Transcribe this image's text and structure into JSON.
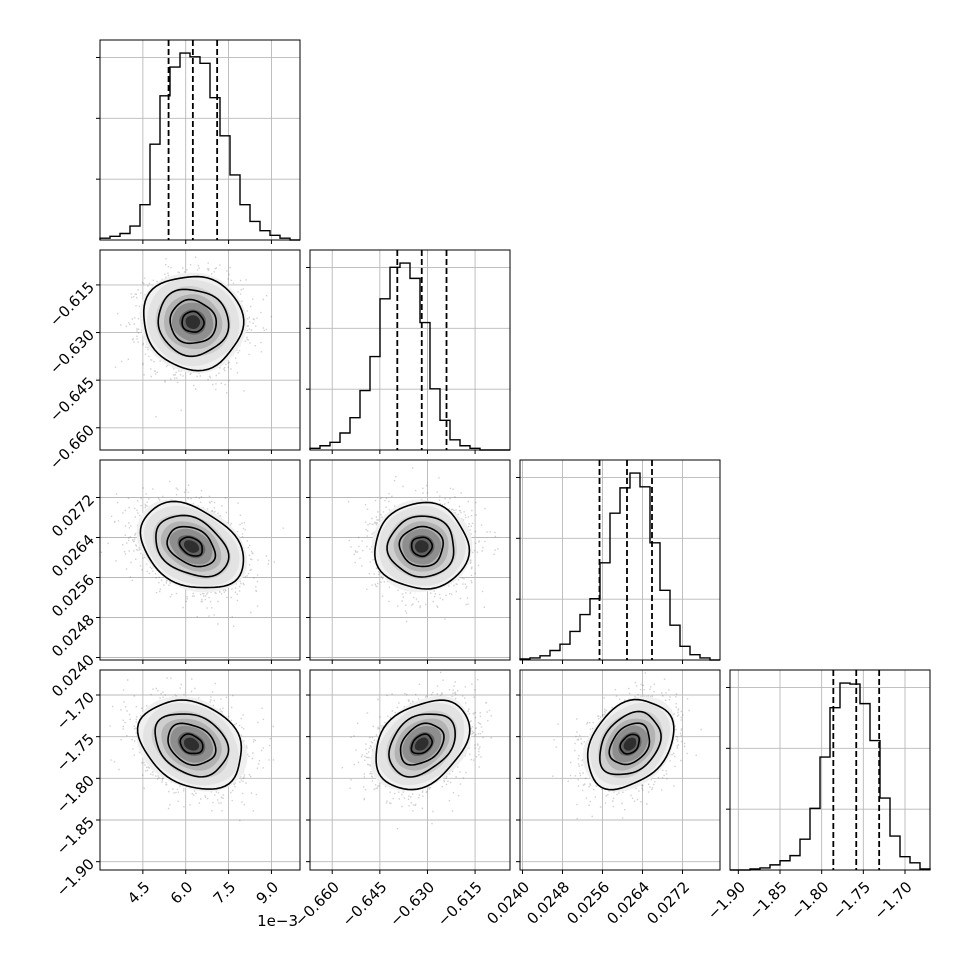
{
  "chart_data": {
    "type": "corner",
    "title": "",
    "parameters": [
      {
        "range": [
          3.0,
          10.0
        ],
        "ticks": [
          4.5,
          6.0,
          7.5,
          9.0
        ],
        "tick_labels": [
          "4.5",
          "6.0",
          "7.5",
          "9.0"
        ],
        "offset_label": "1e−3",
        "quantiles": [
          5.4,
          6.25,
          7.1
        ],
        "hist_edges": [
          3.0,
          3.35,
          3.7,
          4.05,
          4.4,
          4.75,
          5.1,
          5.45,
          5.8,
          6.15,
          6.5,
          6.85,
          7.2,
          7.55,
          7.9,
          8.25,
          8.6,
          8.95,
          9.3,
          9.65,
          10.0
        ],
        "hist_counts": [
          2,
          4,
          7,
          15,
          38,
          103,
          155,
          186,
          201,
          197,
          190,
          153,
          112,
          70,
          38,
          20,
          10,
          5,
          2,
          0
        ]
      },
      {
        "range": [
          -0.667,
          -0.604
        ],
        "ticks": [
          -0.66,
          -0.645,
          -0.63,
          -0.615
        ],
        "tick_labels": [
          "−0.660",
          "−0.645",
          "−0.630",
          "−0.615"
        ],
        "quantiles": [
          -0.6395,
          -0.6318,
          -0.624
        ],
        "hist_edges": [
          -0.667,
          -0.66385,
          -0.6607,
          -0.65755,
          -0.6544,
          -0.65125,
          -0.6481,
          -0.64495,
          -0.6418,
          -0.63865,
          -0.6355,
          -0.63235,
          -0.6292,
          -0.62605,
          -0.6229,
          -0.61975,
          -0.6166,
          -0.61345,
          -0.6103,
          -0.60715,
          -0.604
        ],
        "hist_counts": [
          2,
          5,
          9,
          20,
          38,
          70,
          110,
          178,
          215,
          220,
          202,
          150,
          72,
          35,
          12,
          5,
          2,
          0,
          0,
          0
        ]
      },
      {
        "range": [
          0.02395,
          0.02795
        ],
        "ticks": [
          0.024,
          0.0248,
          0.0256,
          0.0264,
          0.0272
        ],
        "tick_labels": [
          "0.0240",
          "0.0248",
          "0.0256",
          "0.0264",
          "0.0272"
        ],
        "quantiles": [
          0.02554,
          0.02609,
          0.02659
        ],
        "hist_edges": [
          0.02395,
          0.02415,
          0.02435,
          0.02455,
          0.02475,
          0.02495,
          0.02515,
          0.02535,
          0.02555,
          0.02575,
          0.02595,
          0.02615,
          0.02635,
          0.02655,
          0.02675,
          0.02695,
          0.02715,
          0.02735,
          0.02755,
          0.02775,
          0.02795
        ],
        "hist_counts": [
          1,
          2,
          4,
          9,
          15,
          27,
          43,
          58,
          92,
          139,
          163,
          177,
          164,
          111,
          66,
          33,
          13,
          5,
          2,
          0
        ]
      },
      {
        "range": [
          -1.91,
          -1.67
        ],
        "ticks": [
          -1.9,
          -1.85,
          -1.8,
          -1.75,
          -1.7
        ],
        "tick_labels": [
          "−1.90",
          "−1.85",
          "−1.80",
          "−1.75",
          "−1.70"
        ],
        "quantiles": [
          -1.786,
          -1.7585,
          -1.731
        ],
        "hist_edges": [
          -1.91,
          -1.898,
          -1.886,
          -1.874,
          -1.862,
          -1.85,
          -1.838,
          -1.826,
          -1.814,
          -1.802,
          -1.79,
          -1.778,
          -1.766,
          -1.754,
          -1.742,
          -1.73,
          -1.718,
          -1.706,
          -1.694,
          -1.682,
          -1.67
        ],
        "hist_counts": [
          0,
          0,
          1,
          2,
          5,
          9,
          14,
          30,
          60,
          110,
          158,
          182,
          181,
          162,
          126,
          70,
          33,
          13,
          7,
          1
        ]
      }
    ],
    "pairs": [
      {
        "row": 1,
        "col": 0,
        "center": [
          6.25,
          -0.6267
        ],
        "sigma": [
          0.85,
          0.0072
        ],
        "rho": -0.05
      },
      {
        "row": 2,
        "col": 0,
        "center": [
          6.2,
          0.02622
        ],
        "sigma": [
          0.88,
          0.00042
        ],
        "rho": -0.32
      },
      {
        "row": 2,
        "col": 1,
        "center": [
          -0.6318,
          0.02622
        ],
        "sigma": [
          0.0072,
          0.00042
        ],
        "rho": 0.0
      },
      {
        "row": 3,
        "col": 0,
        "center": [
          6.2,
          -1.759
        ],
        "sigma": [
          0.88,
          0.026
        ],
        "rho": -0.25
      },
      {
        "row": 3,
        "col": 1,
        "center": [
          -0.6318,
          -1.759
        ],
        "sigma": [
          0.0072,
          0.026
        ],
        "rho": 0.32
      },
      {
        "row": 3,
        "col": 2,
        "center": [
          0.02615,
          -1.759
        ],
        "sigma": [
          0.00042,
          0.026
        ],
        "rho": 0.3
      }
    ],
    "grid": true,
    "legend": "none"
  }
}
